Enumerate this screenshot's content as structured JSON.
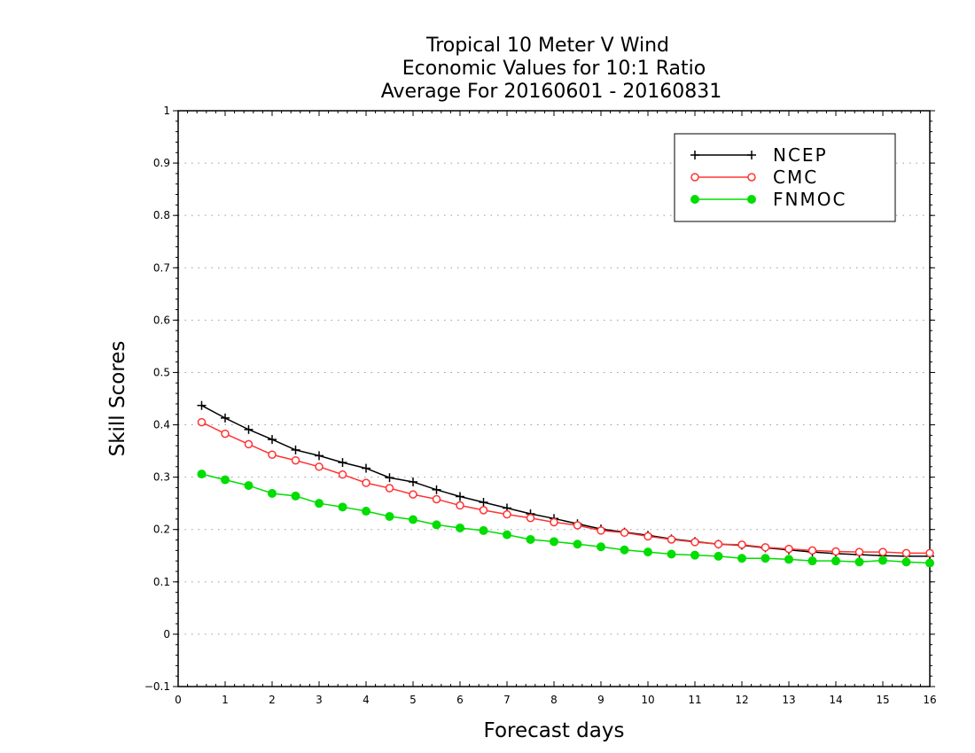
{
  "chart_data": {
    "type": "line",
    "title_lines": [
      "Tropical 10 Meter V Wind",
      "Economic Values for 10:1 Ratio",
      "Average For 20160601 - 20160831"
    ],
    "xlabel": "Forecast days",
    "ylabel": "Skill Scores",
    "xlim": [
      0,
      16
    ],
    "ylim": [
      -0.1,
      1
    ],
    "xticks": [
      "0",
      "1",
      "2",
      "3",
      "4",
      "5",
      "6",
      "7",
      "8",
      "9",
      "10",
      "11",
      "12",
      "13",
      "14",
      "15",
      "16"
    ],
    "yticks": [
      "-0.1",
      "0",
      "0.1",
      "0.2",
      "0.3",
      "0.4",
      "0.5",
      "0.6",
      "0.7",
      "0.8",
      "0.9",
      "1"
    ],
    "grid": true,
    "legend_position": "top-right",
    "x": [
      0.5,
      1,
      1.5,
      2,
      2.5,
      3,
      3.5,
      4,
      4.5,
      5,
      5.5,
      6,
      6.5,
      7,
      7.5,
      8,
      8.5,
      9,
      9.5,
      10,
      10.5,
      11,
      11.5,
      12,
      12.5,
      13,
      13.5,
      14,
      14.5,
      15,
      15.5,
      16
    ],
    "series": [
      {
        "name": "NCEP",
        "color": "#000000",
        "marker": "plus",
        "values": [
          0.437,
          0.413,
          0.391,
          0.372,
          0.352,
          0.341,
          0.328,
          0.317,
          0.299,
          0.291,
          0.276,
          0.263,
          0.252,
          0.241,
          0.23,
          0.221,
          0.211,
          0.201,
          0.195,
          0.189,
          0.182,
          0.177,
          0.172,
          0.17,
          0.165,
          0.161,
          0.157,
          0.154,
          0.152,
          0.15,
          0.149,
          0.149
        ]
      },
      {
        "name": "CMC",
        "color": "#ff3333",
        "marker": "open-circle",
        "values": [
          0.405,
          0.383,
          0.363,
          0.343,
          0.332,
          0.32,
          0.305,
          0.289,
          0.279,
          0.267,
          0.258,
          0.246,
          0.237,
          0.229,
          0.222,
          0.214,
          0.208,
          0.198,
          0.194,
          0.187,
          0.181,
          0.176,
          0.172,
          0.171,
          0.166,
          0.163,
          0.16,
          0.158,
          0.157,
          0.157,
          0.155,
          0.155
        ]
      },
      {
        "name": "FNMOC",
        "color": "#00dd00",
        "marker": "filled-circle",
        "values": [
          0.306,
          0.295,
          0.284,
          0.269,
          0.264,
          0.25,
          0.243,
          0.235,
          0.225,
          0.219,
          0.209,
          0.203,
          0.198,
          0.19,
          0.181,
          0.177,
          0.172,
          0.167,
          0.161,
          0.157,
          0.153,
          0.151,
          0.149,
          0.145,
          0.145,
          0.143,
          0.14,
          0.14,
          0.138,
          0.141,
          0.138,
          0.136
        ]
      }
    ]
  }
}
